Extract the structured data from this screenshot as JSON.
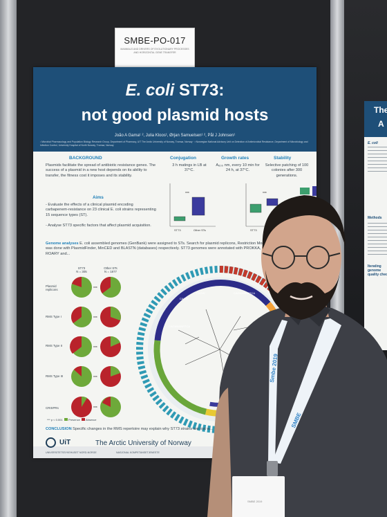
{
  "code_tag": {
    "code": "SMBE-PO-017",
    "subtitle": "MAMMALS AND DRIVERS OF EVOLUTIONARY PROCESSES AND HORIZONTAL GENE TRANSFER"
  },
  "poster": {
    "title_italic": "E. coli",
    "title_rest": " ST73:",
    "title_line2": "not good plasmid hosts",
    "authors": "João A Gama¹ ², Julia Kloos¹, Ørjan Samuelsen¹ ², Pål J Johnsen¹",
    "affiliations": "¹ Microbial Pharmacology and Population Biology Research Group, Department of Pharmacy, UiT The Arctic University of Norway, Tromsø, Norway · ² Norwegian National Advisory Unit on Detection of Antimicrobial Resistance, Department of Microbiology and Infection Control, University Hospital of North Norway, Tromsø, Norway",
    "background_title": "BACKGROUND",
    "background_text": "Plasmids facilitate the spread of antibiotic resistance genes. The success of a plasmid in a new host depends on its ability to transfer, the fitness cost it imposes and its stability.",
    "aims_title": "Aims",
    "aims_text_1": "- Evaluate the effects of a clinical plasmid encoding carbapenem-resistance on 23 clinical E. coli strains representing 15 sequence types (ST).",
    "aims_text_2": "- Analyse ST73 specific factors that affect plasmid acquisition.",
    "conjugation_title": "Conjugation",
    "conjugation_text": "3 h matings in LB at 37°C.",
    "growth_title": "Growth rates",
    "growth_text": "A₆₀₀ nm, every 10 min for 24 h, at 37°C.",
    "stability_title": "Stability",
    "stability_text": "Selective patching of 100 colonies after 300 generations.",
    "chart_x1": "ST73",
    "chart_x2": "Other STs",
    "genome_title": "Genome analyses",
    "genome_text": "E. coli assembled genomes (GenBank) were assigned to STs. Search for plasmid replicons, Restriction Modification Systems (RMS) was done with PlasmidFinder, MinCED and BLASTN (databases) respectively. ST73 genomes were annotated with PROKKA, core genome computed with ROARY and...",
    "pie_col1": "ST73",
    "pie_col1_n": "N = 305",
    "pie_col2": "Other STs",
    "pie_col2_n": "N = 1877",
    "pie_rows": [
      "Plasmid replicons",
      "RMS Type I",
      "RMS Type II",
      "RMS Type III",
      "CRISPRs"
    ],
    "sig": "***",
    "legend_p": "*** p < 0.001",
    "legend_presence": "Presence",
    "legend_absence": "Absence",
    "ring_labels": [
      "CAGW",
      "CAGW",
      "CAGNNNNRTCA",
      "CAGNNNNRTCA"
    ],
    "tree_label": "E.",
    "conclusion_title": "CONCLUSION",
    "conclusion_text": "Specific changes in the RMS repertoire may explain why ST73 strains are lost w...",
    "uit_bold": "UiT",
    "uit_name": "The Arctic University of Norway",
    "foot_1": "UNIVERSITETSSYKEHUSET NORD-NORGE",
    "foot_2": "NASJONAL KOMPETANSETJENESTE"
  },
  "side_poster": {
    "title": "The",
    "title2": "A",
    "title_italic": "E. coli",
    "sec_methods": "Methods",
    "sec_iter": "Iterating genome quality check"
  },
  "lanyard": {
    "left_text": "Smbe 2019",
    "right_text": "SMBE",
    "badge_name": "SMBE 2019"
  },
  "colors": {
    "poster_header": "#1e4f78",
    "section_blue": "#1e7fb8",
    "presence": "#6ea93a",
    "absence": "#b9232b"
  }
}
